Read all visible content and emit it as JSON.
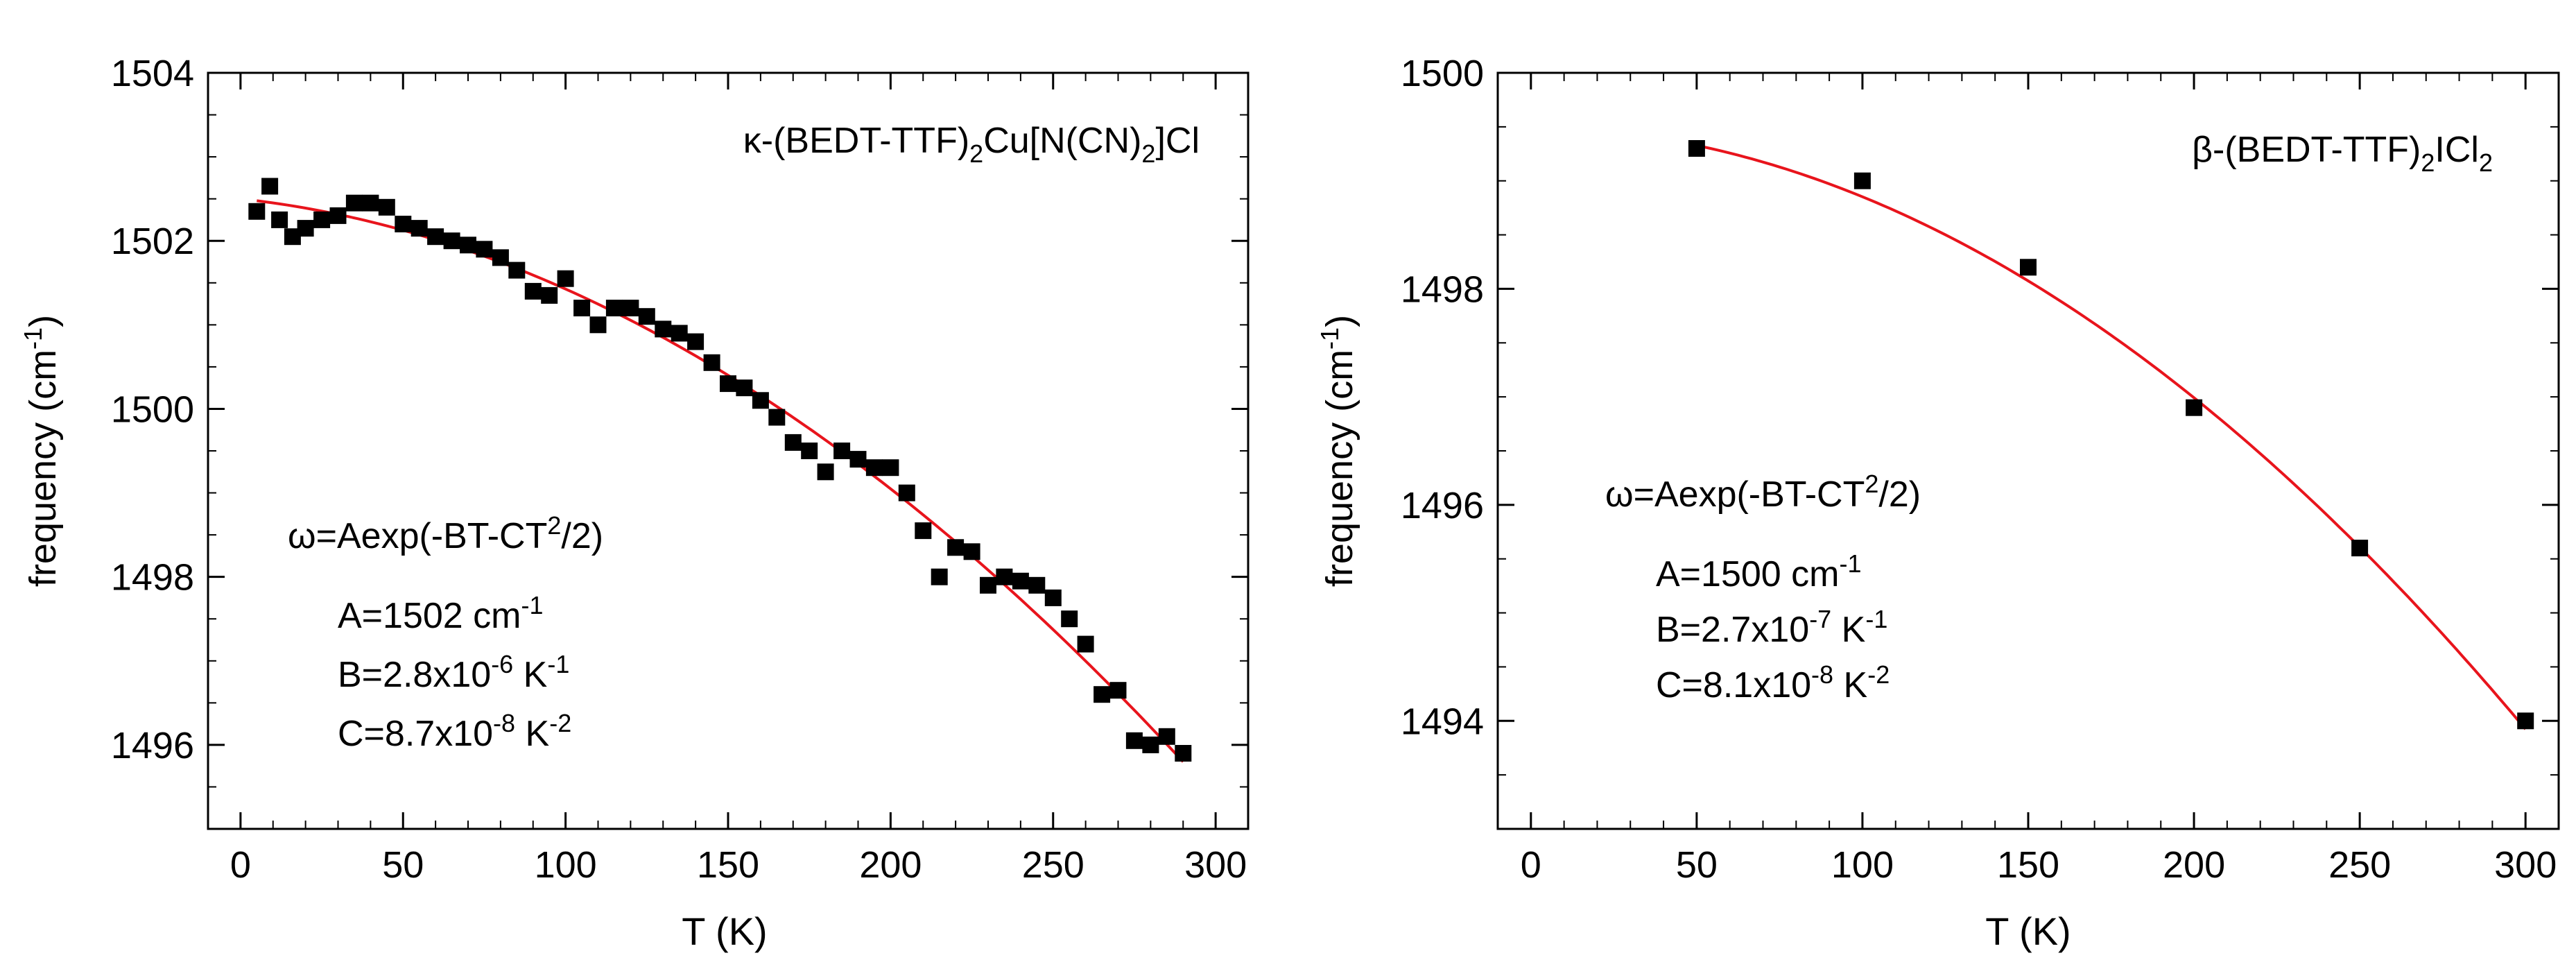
{
  "colors": {
    "fit": "#e8141c",
    "marker": "#000000",
    "axis": "#000000",
    "background": "#ffffff"
  },
  "chart_data": [
    {
      "type": "scatter",
      "title_parts": [
        "κ-(BEDT-TTF)",
        "2",
        "Cu[N(CN)",
        "2",
        "]Cl"
      ],
      "xlabel": "T (K)",
      "ylabel_main": "frequency (cm",
      "ylabel_sup": "-1",
      "ylabel_close": ")",
      "xlim": [
        -10,
        310
      ],
      "ylim": [
        1495,
        1504
      ],
      "xticks": [
        0,
        50,
        100,
        150,
        200,
        250,
        300
      ],
      "yticks": [
        1496,
        1498,
        1500,
        1502,
        1504
      ],
      "x_minor_step": 10,
      "y_minor_step": 0.5,
      "formula": {
        "base": "ω=Aexp(-BT-CT",
        "sup": "2",
        "tail": "/2)"
      },
      "params": [
        {
          "label": "A=1502 cm",
          "sup": "-1",
          "unit": ""
        },
        {
          "label": "B=2.8x10",
          "sup": "-6",
          "unit": " K",
          "unit_sup": "-1"
        },
        {
          "label": "C=8.7x10",
          "sup": "-8",
          "unit": " K",
          "unit_sup": "-2"
        }
      ],
      "fit": {
        "A": 1502.5,
        "B": 2.8e-06,
        "C": 8.7e-08,
        "x_start": 5,
        "x_end": 290
      },
      "series": [
        {
          "name": "data",
          "x": [
            5,
            9,
            12,
            16,
            20,
            25,
            30,
            35,
            40,
            45,
            50,
            55,
            60,
            65,
            70,
            75,
            80,
            85,
            90,
            95,
            100,
            105,
            110,
            115,
            120,
            125,
            130,
            135,
            140,
            145,
            150,
            155,
            160,
            165,
            170,
            175,
            180,
            185,
            190,
            195,
            200,
            205,
            210,
            215,
            220,
            225,
            230,
            235,
            240,
            245,
            250,
            255,
            260,
            265,
            270,
            275,
            280,
            285,
            290
          ],
          "y": [
            1502.35,
            1502.65,
            1502.25,
            1502.05,
            1502.15,
            1502.25,
            1502.3,
            1502.45,
            1502.45,
            1502.4,
            1502.2,
            1502.15,
            1502.05,
            1502.0,
            1501.95,
            1501.9,
            1501.8,
            1501.65,
            1501.4,
            1501.35,
            1501.55,
            1501.2,
            1501.0,
            1501.2,
            1501.2,
            1501.1,
            1500.95,
            1500.9,
            1500.8,
            1500.55,
            1500.3,
            1500.25,
            1500.1,
            1499.9,
            1499.6,
            1499.5,
            1499.25,
            1499.5,
            1499.4,
            1499.3,
            1499.3,
            1499.0,
            1498.55,
            1498.0,
            1498.35,
            1498.3,
            1497.9,
            1498.0,
            1497.95,
            1497.9,
            1497.75,
            1497.5,
            1497.2,
            1496.6,
            1496.65,
            1496.05,
            1496.0,
            1496.1,
            1495.9
          ]
        }
      ]
    },
    {
      "type": "scatter",
      "title_parts": [
        "β-(BEDT-TTF)",
        "2",
        "ICl",
        "2",
        ""
      ],
      "xlabel": "T (K)",
      "ylabel_main": "frequency (cm",
      "ylabel_sup": "-1",
      "ylabel_close": ")",
      "xlim": [
        -10,
        310
      ],
      "ylim": [
        1493,
        1500
      ],
      "xticks": [
        0,
        50,
        100,
        150,
        200,
        250,
        300
      ],
      "yticks": [
        1494,
        1496,
        1498,
        1500
      ],
      "x_minor_step": 10,
      "y_minor_step": 0.5,
      "formula": {
        "base": "ω=Aexp(-BT-CT",
        "sup": "2",
        "tail": "/2)"
      },
      "params": [
        {
          "label": "A=1500 cm",
          "sup": "-1",
          "unit": ""
        },
        {
          "label": "B=2.7x10",
          "sup": "-7",
          "unit": " K",
          "unit_sup": "-1"
        },
        {
          "label": "C=8.1x10",
          "sup": "-8",
          "unit": " K",
          "unit_sup": "-2"
        }
      ],
      "fit": {
        "A": 1499.5,
        "B": 2.7e-07,
        "C": 8.1e-08,
        "x_start": 50,
        "x_end": 300
      },
      "series": [
        {
          "name": "data",
          "x": [
            50,
            100,
            150,
            200,
            250,
            300
          ],
          "y": [
            1499.3,
            1499.0,
            1498.2,
            1496.9,
            1495.6,
            1494.0
          ]
        }
      ]
    }
  ]
}
